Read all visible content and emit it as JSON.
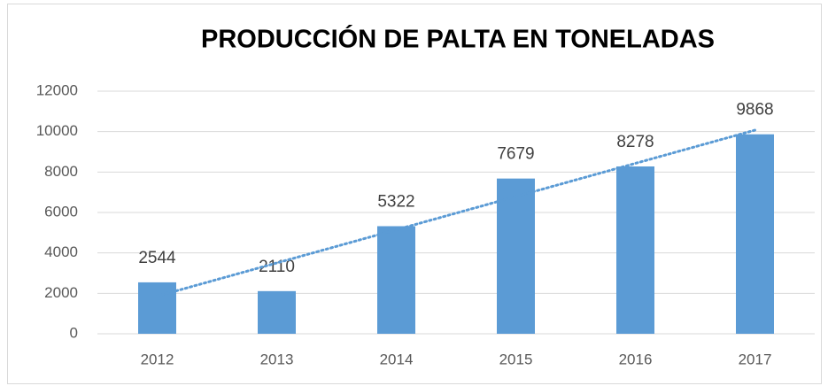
{
  "chart_data": {
    "type": "bar",
    "title": "PRODUCCIÓN DE PALTA EN TONELADAS",
    "categories": [
      "2012",
      "2013",
      "2014",
      "2015",
      "2016",
      "2017"
    ],
    "values": [
      2544,
      2110,
      5322,
      7679,
      8278,
      9868
    ],
    "color": "#5b9bd5",
    "ylim": [
      0,
      12000
    ],
    "yticks": [
      0,
      2000,
      4000,
      6000,
      8000,
      10000,
      12000
    ],
    "grid": true,
    "trendline": "linear",
    "data_labels": true
  }
}
